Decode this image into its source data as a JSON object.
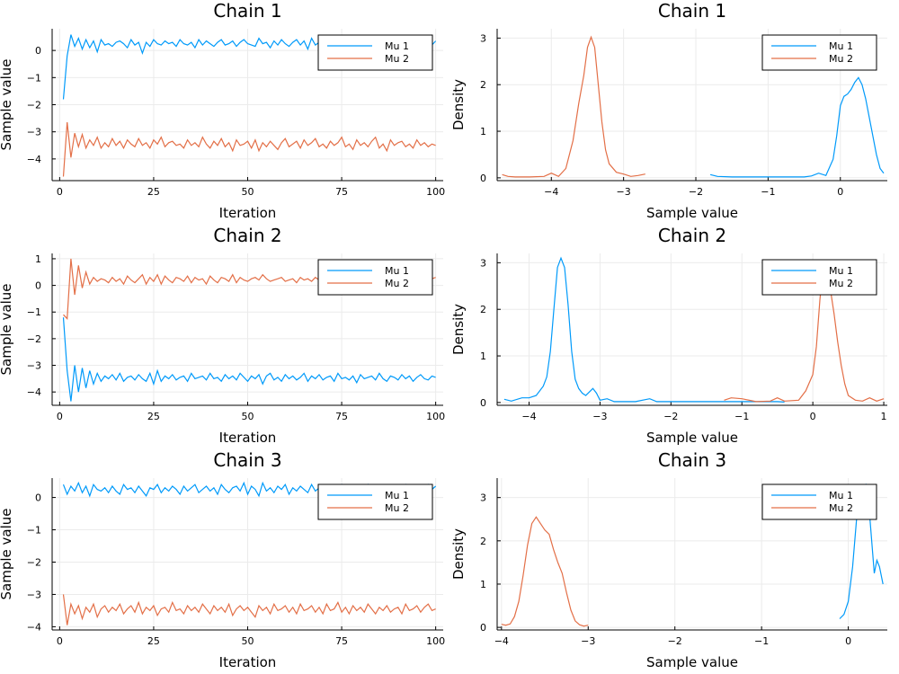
{
  "colors": {
    "mu1": "#009AFA",
    "mu2": "#E36F47",
    "grid": "#ebebeb",
    "axis": "#000000"
  },
  "legend_labels": [
    "Mu 1",
    "Mu 2"
  ],
  "chart_data": [
    {
      "id": "trace-chain-1",
      "type": "line",
      "title": "Chain 1",
      "xlabel": "Iteration",
      "ylabel": "Sample value",
      "xlim": [
        -2,
        102
      ],
      "ylim": [
        -4.8,
        0.8
      ],
      "xticks": [
        0,
        25,
        50,
        75,
        100
      ],
      "yticks": [
        -4,
        -3,
        -2,
        -1,
        0
      ],
      "grid": true,
      "legend": "top-right",
      "series": [
        {
          "name": "Mu 1",
          "x_start": 1,
          "values": [
            -1.8,
            -0.2,
            0.58,
            0.15,
            0.45,
            0.05,
            0.4,
            0.1,
            0.35,
            -0.05,
            0.4,
            0.2,
            0.25,
            0.15,
            0.3,
            0.35,
            0.25,
            0.1,
            0.4,
            0.2,
            0.3,
            -0.1,
            0.3,
            0.15,
            0.4,
            0.25,
            0.2,
            0.35,
            0.25,
            0.3,
            0.15,
            0.4,
            0.25,
            0.2,
            0.3,
            0.1,
            0.4,
            0.2,
            0.35,
            0.25,
            0.15,
            0.3,
            0.4,
            0.2,
            0.25,
            0.35,
            0.15,
            0.3,
            0.4,
            0.25,
            0.2,
            0.15,
            0.45,
            0.25,
            0.3,
            0.1,
            0.35,
            0.2,
            0.4,
            0.25,
            0.15,
            0.3,
            0.4,
            0.2,
            0.35,
            0.05,
            0.45,
            0.2,
            0.3,
            0.4,
            0.15,
            0.3,
            0.25,
            0.35,
            0.2,
            0.4,
            0.1,
            0.3,
            0.45,
            0.2,
            0.35,
            0.25,
            0.15,
            0.3,
            0.4,
            0.2,
            0.25,
            0.35,
            0.15,
            0.4,
            0.25,
            0.3,
            0.2,
            0.35,
            0.1,
            0.4,
            0.25,
            0.3,
            0.2,
            0.35
          ]
        },
        {
          "name": "Mu 2",
          "x_start": 1,
          "values": [
            -4.65,
            -2.65,
            -3.95,
            -3.05,
            -3.55,
            -3.1,
            -3.6,
            -3.3,
            -3.5,
            -3.2,
            -3.6,
            -3.4,
            -3.55,
            -3.25,
            -3.5,
            -3.35,
            -3.6,
            -3.3,
            -3.45,
            -3.55,
            -3.25,
            -3.5,
            -3.4,
            -3.6,
            -3.3,
            -3.45,
            -3.2,
            -3.55,
            -3.4,
            -3.35,
            -3.5,
            -3.45,
            -3.6,
            -3.3,
            -3.5,
            -3.4,
            -3.55,
            -3.2,
            -3.45,
            -3.6,
            -3.35,
            -3.5,
            -3.25,
            -3.55,
            -3.4,
            -3.7,
            -3.3,
            -3.5,
            -3.45,
            -3.35,
            -3.6,
            -3.3,
            -3.7,
            -3.4,
            -3.55,
            -3.35,
            -3.5,
            -3.65,
            -3.4,
            -3.25,
            -3.55,
            -3.45,
            -3.35,
            -3.6,
            -3.3,
            -3.5,
            -3.4,
            -3.25,
            -3.55,
            -3.45,
            -3.6,
            -3.35,
            -3.5,
            -3.4,
            -3.2,
            -3.55,
            -3.45,
            -3.65,
            -3.3,
            -3.5,
            -3.4,
            -3.55,
            -3.35,
            -3.2,
            -3.6,
            -3.45,
            -3.7,
            -3.3,
            -3.5,
            -3.4,
            -3.35,
            -3.55,
            -3.45,
            -3.6,
            -3.3,
            -3.5,
            -3.4,
            -3.55,
            -3.45,
            -3.5
          ]
        }
      ]
    },
    {
      "id": "density-chain-1",
      "type": "line",
      "title": "Chain 1",
      "xlabel": "Sample value",
      "ylabel": "Density",
      "xlim": [
        -4.75,
        0.65
      ],
      "ylim": [
        -0.06,
        3.2
      ],
      "xticks": [
        -4,
        -3,
        -2,
        -1,
        0
      ],
      "yticks": [
        0,
        1,
        2,
        3
      ],
      "grid": true,
      "legend": "top-right",
      "series": [
        {
          "name": "Mu 1",
          "x": [
            -1.8,
            -1.7,
            -1.5,
            -1.0,
            -0.5,
            -0.4,
            -0.3,
            -0.2,
            -0.1,
            -0.05,
            0.0,
            0.05,
            0.1,
            0.15,
            0.2,
            0.25,
            0.3,
            0.35,
            0.4,
            0.45,
            0.5,
            0.55,
            0.6
          ],
          "y": [
            0.07,
            0.03,
            0.02,
            0.02,
            0.02,
            0.04,
            0.1,
            0.05,
            0.4,
            0.9,
            1.55,
            1.75,
            1.8,
            1.9,
            2.05,
            2.15,
            2.0,
            1.7,
            1.3,
            0.9,
            0.5,
            0.2,
            0.1
          ]
        },
        {
          "name": "Mu 2",
          "x": [
            -4.68,
            -4.6,
            -4.5,
            -4.3,
            -4.1,
            -4.0,
            -3.9,
            -3.8,
            -3.7,
            -3.62,
            -3.55,
            -3.5,
            -3.45,
            -3.4,
            -3.35,
            -3.3,
            -3.25,
            -3.2,
            -3.1,
            -3.0,
            -2.9,
            -2.8,
            -2.7
          ],
          "y": [
            0.07,
            0.03,
            0.02,
            0.02,
            0.03,
            0.1,
            0.03,
            0.2,
            0.8,
            1.6,
            2.2,
            2.8,
            3.02,
            2.8,
            2.0,
            1.2,
            0.6,
            0.3,
            0.12,
            0.08,
            0.03,
            0.05,
            0.08
          ]
        }
      ]
    },
    {
      "id": "trace-chain-2",
      "type": "line",
      "title": "Chain 2",
      "xlabel": "Iteration",
      "ylabel": "Sample value",
      "xlim": [
        -2,
        102
      ],
      "ylim": [
        -4.5,
        1.2
      ],
      "xticks": [
        0,
        25,
        50,
        75,
        100
      ],
      "yticks": [
        -4,
        -3,
        -2,
        -1,
        0,
        1
      ],
      "grid": true,
      "legend": "top-right",
      "series": [
        {
          "name": "Mu 1",
          "x_start": 1,
          "values": [
            -1.2,
            -3.2,
            -4.35,
            -3.0,
            -4.0,
            -3.1,
            -3.85,
            -3.2,
            -3.7,
            -3.3,
            -3.6,
            -3.4,
            -3.5,
            -3.35,
            -3.55,
            -3.3,
            -3.6,
            -3.45,
            -3.4,
            -3.55,
            -3.35,
            -3.5,
            -3.6,
            -3.3,
            -3.7,
            -3.2,
            -3.6,
            -3.4,
            -3.5,
            -3.35,
            -3.55,
            -3.45,
            -3.4,
            -3.6,
            -3.3,
            -3.5,
            -3.45,
            -3.4,
            -3.55,
            -3.3,
            -3.5,
            -3.45,
            -3.6,
            -3.35,
            -3.5,
            -3.4,
            -3.55,
            -3.3,
            -3.45,
            -3.6,
            -3.4,
            -3.5,
            -3.35,
            -3.7,
            -3.4,
            -3.3,
            -3.55,
            -3.45,
            -3.6,
            -3.35,
            -3.5,
            -3.4,
            -3.55,
            -3.45,
            -3.3,
            -3.6,
            -3.4,
            -3.5,
            -3.35,
            -3.55,
            -3.45,
            -3.4,
            -3.6,
            -3.3,
            -3.5,
            -3.45,
            -3.55,
            -3.4,
            -3.65,
            -3.35,
            -3.5,
            -3.45,
            -3.4,
            -3.55,
            -3.3,
            -3.5,
            -3.6,
            -3.4,
            -3.45,
            -3.55,
            -3.35,
            -3.5,
            -3.4,
            -3.6,
            -3.45,
            -3.35,
            -3.5,
            -3.55,
            -3.4,
            -3.45
          ]
        },
        {
          "name": "Mu 2",
          "x_start": 1,
          "values": [
            -1.1,
            -1.25,
            1.0,
            -0.35,
            0.75,
            -0.1,
            0.5,
            0.05,
            0.3,
            0.15,
            0.25,
            0.2,
            0.1,
            0.3,
            0.15,
            0.25,
            0.05,
            0.35,
            0.2,
            0.1,
            0.25,
            0.4,
            0.05,
            0.3,
            0.15,
            0.4,
            0.05,
            0.35,
            0.2,
            0.1,
            0.3,
            0.25,
            0.15,
            0.35,
            0.1,
            0.3,
            0.2,
            0.25,
            0.05,
            0.35,
            0.2,
            0.1,
            0.3,
            0.25,
            0.15,
            0.4,
            0.1,
            0.3,
            0.2,
            0.15,
            0.25,
            0.3,
            0.2,
            0.4,
            0.25,
            0.15,
            0.2,
            0.25,
            0.3,
            0.15,
            0.2,
            0.25,
            0.1,
            0.3,
            0.2,
            0.25,
            0.15,
            0.3,
            0.2,
            0.25,
            0.1,
            0.35,
            0.2,
            0.15,
            0.3,
            0.25,
            0.2,
            0.35,
            0.15,
            0.25,
            0.3,
            0.1,
            0.4,
            0.2,
            0.25,
            0.15,
            0.3,
            0.2,
            0.35,
            0.25,
            0.15,
            0.3,
            0.2,
            0.25,
            0.35,
            0.15,
            0.3,
            0.2,
            0.25,
            0.3
          ]
        }
      ]
    },
    {
      "id": "density-chain-2",
      "type": "line",
      "title": "Chain 2",
      "xlabel": "Sample value",
      "ylabel": "Density",
      "xlim": [
        -4.45,
        1.05
      ],
      "ylim": [
        -0.06,
        3.2
      ],
      "xticks": [
        -4,
        -3,
        -2,
        -1,
        0,
        1
      ],
      "yticks": [
        0,
        1,
        2,
        3
      ],
      "grid": true,
      "legend": "top-right",
      "series": [
        {
          "name": "Mu 1",
          "x": [
            -4.35,
            -4.25,
            -4.1,
            -4.0,
            -3.9,
            -3.8,
            -3.75,
            -3.7,
            -3.65,
            -3.6,
            -3.55,
            -3.5,
            -3.45,
            -3.4,
            -3.35,
            -3.3,
            -3.25,
            -3.2,
            -3.1,
            -3.05,
            -3.0,
            -2.9,
            -2.8,
            -2.5,
            -2.3,
            -2.2,
            -2.0,
            -1.5,
            -1.0,
            -0.5,
            -0.4
          ],
          "y": [
            0.07,
            0.03,
            0.1,
            0.1,
            0.15,
            0.35,
            0.55,
            1.1,
            2.0,
            2.9,
            3.1,
            2.9,
            2.1,
            1.1,
            0.5,
            0.3,
            0.2,
            0.15,
            0.3,
            0.2,
            0.05,
            0.08,
            0.02,
            0.02,
            0.08,
            0.02,
            0.02,
            0.02,
            0.02,
            0.02,
            0.01
          ]
        },
        {
          "name": "Mu 2",
          "x": [
            -1.25,
            -1.15,
            -1.0,
            -0.8,
            -0.6,
            -0.5,
            -0.4,
            -0.2,
            -0.1,
            0.0,
            0.05,
            0.1,
            0.15,
            0.2,
            0.25,
            0.3,
            0.35,
            0.4,
            0.45,
            0.5,
            0.6,
            0.7,
            0.8,
            0.9,
            1.0
          ],
          "y": [
            0.05,
            0.1,
            0.08,
            0.02,
            0.03,
            0.1,
            0.03,
            0.05,
            0.25,
            0.6,
            1.2,
            2.2,
            3.0,
            2.9,
            2.4,
            1.9,
            1.3,
            0.8,
            0.4,
            0.15,
            0.05,
            0.03,
            0.1,
            0.03,
            0.08
          ]
        }
      ]
    },
    {
      "id": "trace-chain-3",
      "type": "line",
      "title": "Chain 3",
      "xlabel": "Iteration",
      "ylabel": "Sample value",
      "xlim": [
        -2,
        102
      ],
      "ylim": [
        -4.1,
        0.6
      ],
      "xticks": [
        0,
        25,
        50,
        75,
        100
      ],
      "yticks": [
        -4,
        -3,
        -2,
        -1,
        0
      ],
      "grid": true,
      "legend": "top-right",
      "series": [
        {
          "name": "Mu 1",
          "x_start": 1,
          "values": [
            0.4,
            0.1,
            0.35,
            0.2,
            0.45,
            0.15,
            0.35,
            0.05,
            0.4,
            0.25,
            0.2,
            0.3,
            0.15,
            0.35,
            0.2,
            0.1,
            0.4,
            0.25,
            0.3,
            0.15,
            0.35,
            0.2,
            0.05,
            0.3,
            0.25,
            0.4,
            0.15,
            0.3,
            0.2,
            0.35,
            0.25,
            0.1,
            0.35,
            0.2,
            0.3,
            0.4,
            0.15,
            0.25,
            0.35,
            0.2,
            0.3,
            0.1,
            0.4,
            0.25,
            0.15,
            0.3,
            0.35,
            0.2,
            0.45,
            0.1,
            0.35,
            0.25,
            0.05,
            0.45,
            0.2,
            0.3,
            0.15,
            0.35,
            0.25,
            0.4,
            0.1,
            0.3,
            0.2,
            0.35,
            0.25,
            0.15,
            0.4,
            0.2,
            0.3,
            0.25,
            0.35,
            0.15,
            0.3,
            0.2,
            0.4,
            0.25,
            0.3,
            0.15,
            0.35,
            0.2,
            0.25,
            0.4,
            0.15,
            0.3,
            0.2,
            0.35,
            0.25,
            0.1,
            0.35,
            0.3,
            0.2,
            0.4,
            0.25,
            0.15,
            0.35,
            0.3,
            0.2,
            0.4,
            0.25,
            0.35
          ]
        },
        {
          "name": "Mu 2",
          "x_start": 1,
          "values": [
            -3.0,
            -3.95,
            -3.3,
            -3.6,
            -3.35,
            -3.75,
            -3.4,
            -3.55,
            -3.3,
            -3.7,
            -3.45,
            -3.35,
            -3.55,
            -3.4,
            -3.5,
            -3.3,
            -3.6,
            -3.45,
            -3.35,
            -3.55,
            -3.25,
            -3.6,
            -3.4,
            -3.5,
            -3.35,
            -3.65,
            -3.45,
            -3.4,
            -3.55,
            -3.25,
            -3.5,
            -3.45,
            -3.6,
            -3.35,
            -3.5,
            -3.4,
            -3.55,
            -3.3,
            -3.45,
            -3.6,
            -3.35,
            -3.5,
            -3.4,
            -3.55,
            -3.3,
            -3.65,
            -3.45,
            -3.35,
            -3.5,
            -3.4,
            -3.55,
            -3.7,
            -3.35,
            -3.5,
            -3.4,
            -3.6,
            -3.3,
            -3.5,
            -3.45,
            -3.35,
            -3.55,
            -3.4,
            -3.6,
            -3.3,
            -3.5,
            -3.45,
            -3.35,
            -3.55,
            -3.4,
            -3.6,
            -3.3,
            -3.5,
            -3.45,
            -3.25,
            -3.55,
            -3.4,
            -3.6,
            -3.35,
            -3.5,
            -3.4,
            -3.55,
            -3.3,
            -3.45,
            -3.6,
            -3.4,
            -3.5,
            -3.35,
            -3.55,
            -3.45,
            -3.4,
            -3.6,
            -3.3,
            -3.5,
            -3.45,
            -3.35,
            -3.55,
            -3.4,
            -3.3,
            -3.5,
            -3.45
          ]
        }
      ]
    },
    {
      "id": "density-chain-3",
      "type": "line",
      "title": "Chain 3",
      "xlabel": "Sample value",
      "ylabel": "Density",
      "xlim": [
        -4.05,
        0.45
      ],
      "ylim": [
        -0.06,
        3.45
      ],
      "xticks": [
        -4,
        -3,
        -2,
        -1,
        0
      ],
      "yticks": [
        0,
        1,
        2,
        3
      ],
      "grid": true,
      "legend": "top-right",
      "series": [
        {
          "name": "Mu 1",
          "x": [
            -0.1,
            -0.05,
            0.0,
            0.05,
            0.1,
            0.15,
            0.2,
            0.25,
            0.3,
            0.33,
            0.36,
            0.4
          ],
          "y": [
            0.2,
            0.3,
            0.6,
            1.4,
            2.6,
            3.2,
            3.3,
            2.5,
            1.25,
            1.55,
            1.4,
            1.0
          ]
        },
        {
          "name": "Mu 2",
          "x": [
            -4.0,
            -3.95,
            -3.9,
            -3.85,
            -3.8,
            -3.75,
            -3.7,
            -3.65,
            -3.6,
            -3.55,
            -3.5,
            -3.45,
            -3.4,
            -3.35,
            -3.3,
            -3.25,
            -3.2,
            -3.15,
            -3.1,
            -3.05,
            -3.0
          ],
          "y": [
            0.07,
            0.05,
            0.08,
            0.25,
            0.6,
            1.2,
            1.9,
            2.4,
            2.55,
            2.4,
            2.25,
            2.15,
            1.8,
            1.5,
            1.25,
            0.8,
            0.4,
            0.15,
            0.06,
            0.03,
            0.05
          ]
        }
      ]
    }
  ]
}
